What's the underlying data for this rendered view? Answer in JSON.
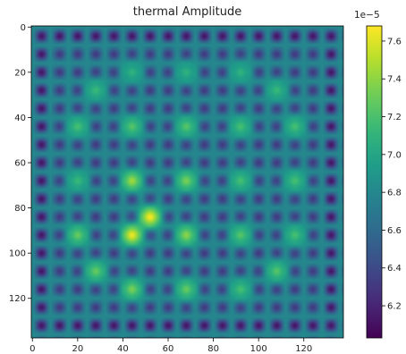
{
  "chart_data": {
    "type": "heatmap",
    "title": "thermal Amplitude",
    "colormap": "viridis",
    "grid_shape": [
      138,
      138
    ],
    "x_ticks": [
      0,
      20,
      40,
      60,
      80,
      100,
      120
    ],
    "y_ticks": [
      0,
      20,
      40,
      60,
      80,
      100,
      120
    ],
    "xlim": [
      -0.5,
      137.5
    ],
    "ylim": [
      137.5,
      -0.5
    ],
    "colorbar": {
      "min": 6.03,
      "max": 7.68,
      "ticks": [
        6.2,
        6.4,
        6.6,
        6.8,
        7.0,
        7.2,
        7.4,
        7.6
      ],
      "tick_labels": [
        "6.2",
        "6.4",
        "6.6",
        "6.8",
        "7.0",
        "7.2",
        "7.4",
        "7.6"
      ],
      "offset_label": "1e−5"
    },
    "pattern": {
      "cell_period": 8,
      "cell_origin": 4,
      "background_level": 6.8,
      "dark_well_level": 6.3,
      "edge_well_level": 6.1,
      "hot_spots": [
        {
          "x": 44,
          "y": 20,
          "value": 7.1
        },
        {
          "x": 68,
          "y": 20,
          "value": 7.1
        },
        {
          "x": 92,
          "y": 20,
          "value": 7.1
        },
        {
          "x": 28,
          "y": 28,
          "value": 7.15
        },
        {
          "x": 108,
          "y": 28,
          "value": 7.15
        },
        {
          "x": 20,
          "y": 44,
          "value": 7.2
        },
        {
          "x": 44,
          "y": 44,
          "value": 7.25
        },
        {
          "x": 68,
          "y": 44,
          "value": 7.25
        },
        {
          "x": 92,
          "y": 44,
          "value": 7.2
        },
        {
          "x": 116,
          "y": 44,
          "value": 7.2
        },
        {
          "x": 20,
          "y": 68,
          "value": 7.15
        },
        {
          "x": 44,
          "y": 68,
          "value": 7.45
        },
        {
          "x": 68,
          "y": 68,
          "value": 7.35
        },
        {
          "x": 92,
          "y": 68,
          "value": 7.2
        },
        {
          "x": 116,
          "y": 68,
          "value": 7.2
        },
        {
          "x": 52,
          "y": 84,
          "value": 7.68
        },
        {
          "x": 20,
          "y": 92,
          "value": 7.3
        },
        {
          "x": 44,
          "y": 92,
          "value": 7.65
        },
        {
          "x": 68,
          "y": 92,
          "value": 7.4
        },
        {
          "x": 92,
          "y": 92,
          "value": 7.25
        },
        {
          "x": 116,
          "y": 92,
          "value": 7.2
        },
        {
          "x": 28,
          "y": 108,
          "value": 7.3
        },
        {
          "x": 108,
          "y": 108,
          "value": 7.25
        },
        {
          "x": 44,
          "y": 116,
          "value": 7.35
        },
        {
          "x": 68,
          "y": 116,
          "value": 7.3
        },
        {
          "x": 92,
          "y": 116,
          "value": 7.2
        }
      ]
    }
  }
}
